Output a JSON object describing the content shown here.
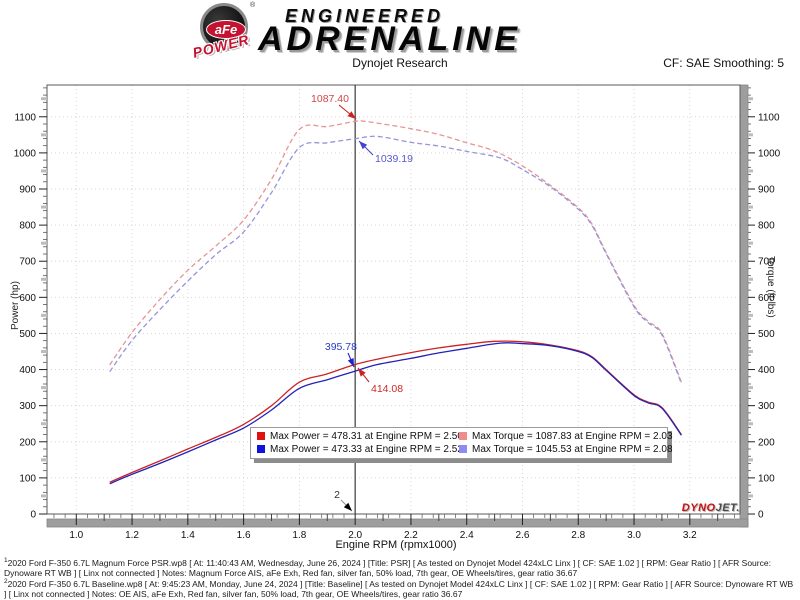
{
  "header": {
    "logo": {
      "afe": "aFe",
      "power": "POWER",
      "registered": "®",
      "engineered": "ENGINEERED",
      "adrenaline": "ADRENALINE"
    },
    "subtitle": "Dynojet Research",
    "smoothing": "CF: SAE Smoothing: 5"
  },
  "chart_data": {
    "type": "line",
    "xlabel": "Engine RPM (rpmx1000)",
    "ylabel_left": "Power (hp)",
    "ylabel_right": "Torque (ft-lbs)",
    "xlim": [
      0.895,
      3.38
    ],
    "ylim": [
      0,
      1188
    ],
    "x_ticks": [
      1.0,
      1.2,
      1.4,
      1.6,
      1.8,
      2.0,
      2.2,
      2.4,
      2.6,
      2.8,
      3.0,
      3.2
    ],
    "y_ticks": [
      0,
      100,
      200,
      300,
      400,
      500,
      600,
      700,
      800,
      900,
      1000,
      1100
    ],
    "grid": "dotted",
    "legend_position": "bottom-center-inside",
    "cursor": {
      "x": 2.0,
      "label": "2"
    },
    "series": [
      {
        "name": "Power PSR",
        "axis": "left",
        "color": "#cc2222",
        "dash": "solid",
        "points": [
          [
            1.12,
            88
          ],
          [
            1.2,
            115
          ],
          [
            1.3,
            147
          ],
          [
            1.4,
            180
          ],
          [
            1.5,
            212
          ],
          [
            1.6,
            248
          ],
          [
            1.7,
            300
          ],
          [
            1.8,
            365
          ],
          [
            1.9,
            388
          ],
          [
            2.0,
            414.08
          ],
          [
            2.1,
            432
          ],
          [
            2.2,
            447
          ],
          [
            2.3,
            460
          ],
          [
            2.4,
            470
          ],
          [
            2.5,
            478.31
          ],
          [
            2.6,
            477
          ],
          [
            2.7,
            468
          ],
          [
            2.8,
            452
          ],
          [
            2.85,
            435
          ],
          [
            2.9,
            400
          ],
          [
            3.0,
            330
          ],
          [
            3.05,
            310
          ],
          [
            3.1,
            295
          ],
          [
            3.17,
            220
          ]
        ]
      },
      {
        "name": "Power Baseline",
        "axis": "left",
        "color": "#2222bb",
        "dash": "solid",
        "points": [
          [
            1.12,
            84
          ],
          [
            1.2,
            110
          ],
          [
            1.3,
            140
          ],
          [
            1.4,
            172
          ],
          [
            1.5,
            205
          ],
          [
            1.6,
            238
          ],
          [
            1.7,
            288
          ],
          [
            1.8,
            348
          ],
          [
            1.9,
            372
          ],
          [
            2.0,
            395.78
          ],
          [
            2.08,
            414
          ],
          [
            2.2,
            431
          ],
          [
            2.3,
            446
          ],
          [
            2.4,
            459
          ],
          [
            2.52,
            473.33
          ],
          [
            2.6,
            472
          ],
          [
            2.7,
            466
          ],
          [
            2.8,
            450
          ],
          [
            2.85,
            433
          ],
          [
            2.9,
            398
          ],
          [
            3.0,
            328
          ],
          [
            3.05,
            308
          ],
          [
            3.1,
            293
          ],
          [
            3.17,
            218
          ]
        ]
      },
      {
        "name": "Torque PSR",
        "axis": "right",
        "color": "#e59595",
        "dash": "dashed",
        "points": [
          [
            1.12,
            413
          ],
          [
            1.2,
            503
          ],
          [
            1.3,
            594
          ],
          [
            1.4,
            675
          ],
          [
            1.5,
            742
          ],
          [
            1.6,
            814
          ],
          [
            1.7,
            927
          ],
          [
            1.8,
            1065
          ],
          [
            1.9,
            1073
          ],
          [
            2.0,
            1087.4
          ],
          [
            2.03,
            1087.83
          ],
          [
            2.1,
            1080
          ],
          [
            2.2,
            1067
          ],
          [
            2.3,
            1051
          ],
          [
            2.4,
            1028
          ],
          [
            2.5,
            1005
          ],
          [
            2.6,
            964
          ],
          [
            2.7,
            910
          ],
          [
            2.8,
            848
          ],
          [
            2.85,
            802
          ],
          [
            2.9,
            724
          ],
          [
            3.0,
            578
          ],
          [
            3.05,
            534
          ],
          [
            3.1,
            500
          ],
          [
            3.17,
            365
          ]
        ]
      },
      {
        "name": "Torque Baseline",
        "axis": "right",
        "color": "#9595dd",
        "dash": "dashed",
        "points": [
          [
            1.12,
            394
          ],
          [
            1.2,
            481
          ],
          [
            1.3,
            566
          ],
          [
            1.4,
            645
          ],
          [
            1.5,
            718
          ],
          [
            1.6,
            781
          ],
          [
            1.7,
            890
          ],
          [
            1.8,
            1015
          ],
          [
            1.9,
            1028
          ],
          [
            2.0,
            1039.19
          ],
          [
            2.08,
            1045.53
          ],
          [
            2.2,
            1029
          ],
          [
            2.3,
            1019
          ],
          [
            2.4,
            1004
          ],
          [
            2.52,
            986
          ],
          [
            2.6,
            954
          ],
          [
            2.7,
            906
          ],
          [
            2.8,
            844
          ],
          [
            2.85,
            798
          ],
          [
            2.9,
            721
          ],
          [
            3.0,
            574
          ],
          [
            3.05,
            530
          ],
          [
            3.1,
            496
          ],
          [
            3.17,
            361
          ]
        ]
      }
    ],
    "annotations": [
      {
        "text": "1087.40",
        "color": "#cc4848",
        "anchor": "end",
        "tx": 349,
        "ty": 24,
        "lx": 339,
        "ly": 27,
        "ax": 356,
        "ay": 41,
        "head": "#cc2222"
      },
      {
        "text": "1039.19",
        "color": "#5858cc",
        "anchor": "start",
        "tx": 375,
        "ty": 84,
        "lx": 373,
        "ly": 77,
        "ax": 359,
        "ay": 63,
        "head": "#4444cc"
      },
      {
        "text": "395.78",
        "color": "#2a3acc",
        "anchor": "end",
        "tx": 357,
        "ty": 272,
        "lx": 348,
        "ly": 275,
        "ax": 354,
        "ay": 289,
        "head": "#2222cc"
      },
      {
        "text": "414.08",
        "color": "#cc2a2a",
        "anchor": "start",
        "tx": 371,
        "ty": 314,
        "lx": 369,
        "ly": 304,
        "ax": 358,
        "ay": 290,
        "head": "#cc2222"
      },
      {
        "text": "2",
        "color": "#333333",
        "anchor": "middle",
        "tx": 337,
        "ty": 420,
        "lx": 341,
        "ly": 422,
        "ax": 352,
        "ay": 433,
        "head": "#000000",
        "line": "#999999"
      }
    ]
  },
  "legend": {
    "items": [
      {
        "color": "#e01111",
        "label": "Max Power = 478.31 at Engine RPM = 2.50"
      },
      {
        "color": "#f28b8b",
        "label": "Max Torque = 1087.83 at Engine RPM = 2.03"
      },
      {
        "color": "#1111e0",
        "label": "Max Power = 473.33 at Engine RPM = 2.52"
      },
      {
        "color": "#8b8bf2",
        "label": "Max Torque = 1045.53 at Engine RPM = 2.08"
      }
    ]
  },
  "watermark": {
    "dyno": "DYNO",
    "jet": "JET."
  },
  "footnotes": [
    {
      "sup": "1",
      "text": "2020 Ford F-350 6.7L  Magnum Force PSR.wp8 [ At: 11:40:43 AM, Wednesday, June 26, 2024 ] [Title: PSR]  [ As tested on Dynojet Model 424xLC Linx ] [ CF: SAE 1.02 ] [ RPM: Gear Ratio ] [ AFR Source: Dynoware RT WB ] [ Linx not connected ] Notes: Magnum Force AIS, aFe Exh,  Red fan, silver fan, 50% load, 7th gear, OE Wheels/tires, gear ratio 36.67"
    },
    {
      "sup": "2",
      "text": "2020 Ford F-350 6.7L Baseline.wp8 [ At: 9:45:23 AM, Monday, June 24, 2024 ] [Title: Baseline]  [ As tested on Dynojet Model 424xLC Linx ] [ CF: SAE 1.02 ] [ RPM: Gear Ratio ] [ AFR Source: Dynoware RT WB ] [ Linx not connected ] Notes: OE AIS, aFe Exh,  Red fan, silver fan, 50% load, 7th gear, OE Wheels/tires, gear ratio 36.67"
    }
  ]
}
